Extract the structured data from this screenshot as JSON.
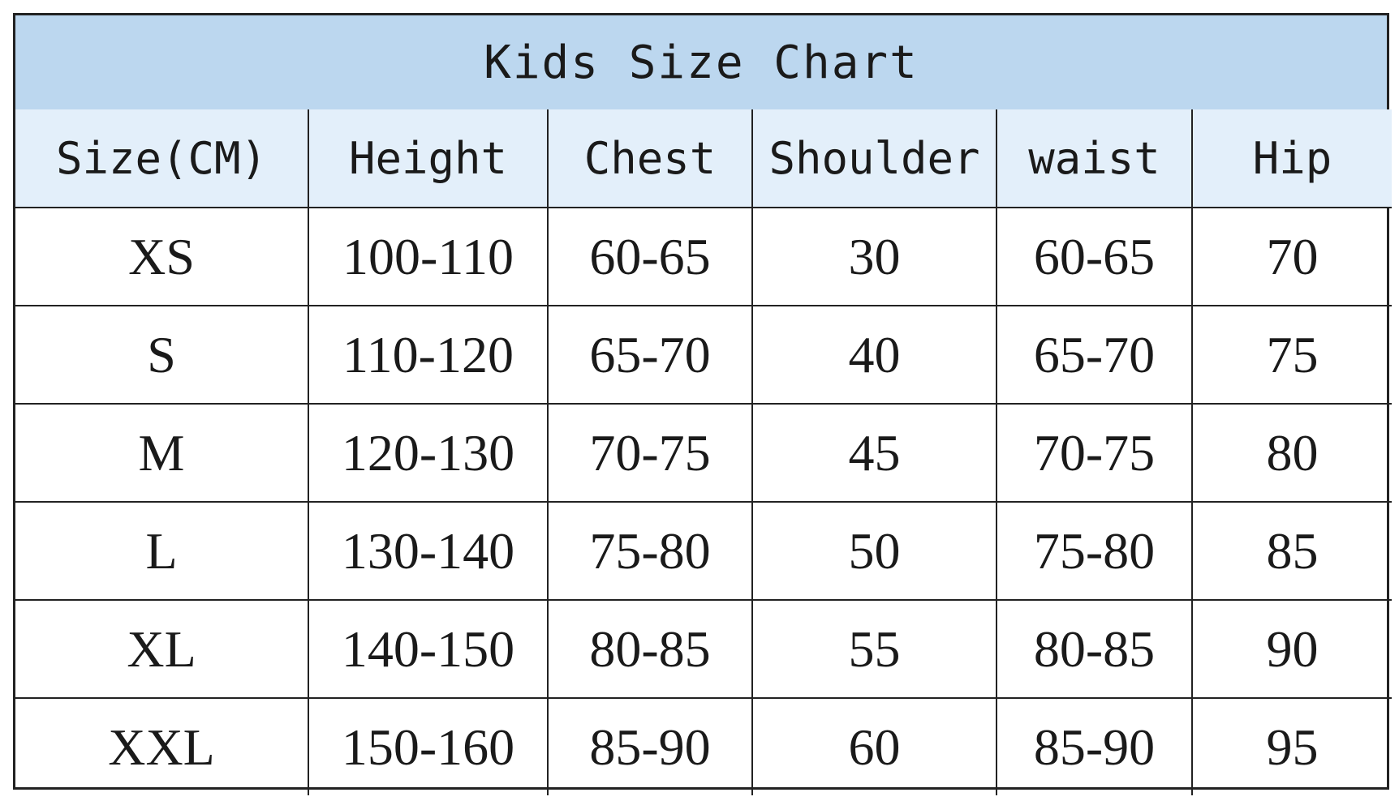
{
  "title": "Kids Size Chart",
  "colors": {
    "title_background": "#bcd7ef",
    "header_background": "#e3effa",
    "border": "#222222"
  },
  "headers": [
    "Size(CM)",
    "Height",
    "Chest",
    "Shoulder",
    "waist",
    "Hip"
  ],
  "rows": [
    [
      "XS",
      "100-110",
      "60-65",
      "30",
      "60-65",
      "70"
    ],
    [
      "S",
      "110-120",
      "65-70",
      "40",
      "65-70",
      "75"
    ],
    [
      "M",
      "120-130",
      "70-75",
      "45",
      "70-75",
      "80"
    ],
    [
      "L",
      "130-140",
      "75-80",
      "50",
      "75-80",
      "85"
    ],
    [
      "XL",
      "140-150",
      "80-85",
      "55",
      "80-85",
      "90"
    ],
    [
      "XXL",
      "150-160",
      "85-90",
      "60",
      "85-90",
      "95"
    ]
  ]
}
